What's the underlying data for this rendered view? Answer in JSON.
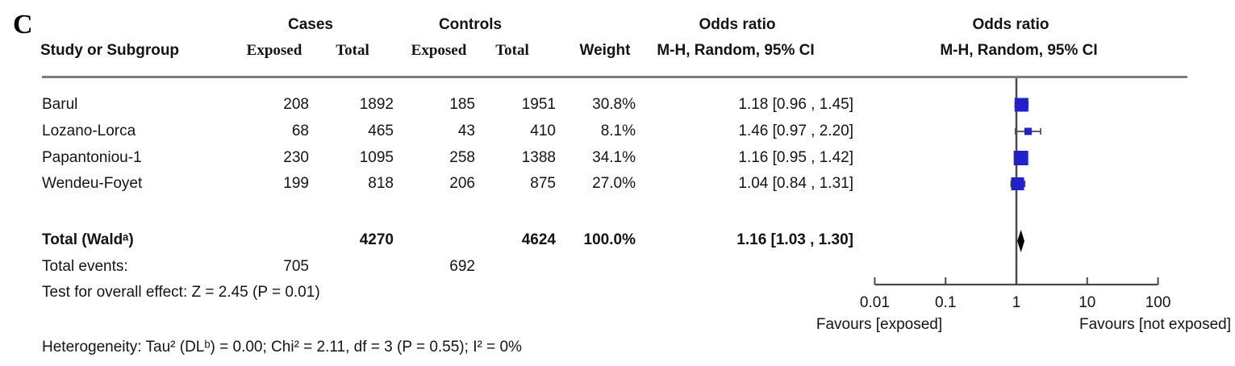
{
  "panel_label": "C",
  "header": {
    "group_cases": "Cases",
    "group_controls": "Controls",
    "group_or_left": "Odds ratio",
    "group_or_right": "Odds ratio",
    "study": "Study or Subgroup",
    "exposed_cases": "Exposed",
    "total_cases": "Total",
    "exposed_controls": "Exposed",
    "total_controls": "Total",
    "weight": "Weight",
    "mh_left": "M-H, Random, 95% CI",
    "mh_right": "M-H, Random, 95% CI"
  },
  "rows": [
    {
      "study": "Barul",
      "cases_exposed": "208",
      "cases_total": "1892",
      "controls_exposed": "185",
      "controls_total": "1951",
      "weight": "30.8%",
      "or_text": "1.18 [0.96 , 1.45]"
    },
    {
      "study": "Lozano-Lorca",
      "cases_exposed": "68",
      "cases_total": "465",
      "controls_exposed": "43",
      "controls_total": "410",
      "weight": "8.1%",
      "or_text": "1.46 [0.97 , 2.20]"
    },
    {
      "study": "Papantoniou-1",
      "cases_exposed": "230",
      "cases_total": "1095",
      "controls_exposed": "258",
      "controls_total": "1388",
      "weight": "34.1%",
      "or_text": "1.16 [0.95 , 1.42]"
    },
    {
      "study": "Wendeu-Foyet",
      "cases_exposed": "199",
      "cases_total": "818",
      "controls_exposed": "206",
      "controls_total": "875",
      "weight": "27.0%",
      "or_text": "1.04 [0.84 , 1.31]"
    }
  ],
  "total": {
    "label": "Total (Waldᵃ)",
    "cases_total": "4270",
    "controls_total": "4624",
    "weight": "100.0%",
    "or_text": "1.16 [1.03 , 1.30]"
  },
  "total_events": {
    "label": "Total events:",
    "cases": "705",
    "controls": "692"
  },
  "overall_effect": "Test for overall effect: Z = 2.45 (P = 0.01)",
  "heterogeneity": "Heterogeneity: Tau² (DLᵇ) = 0.00; Chi² = 2.11, df = 3 (P = 0.55); I² = 0%",
  "chart_data": {
    "type": "forest",
    "effect_measure": "Odds ratio, M-H, Random, 95% CI",
    "scale": "log10",
    "axis_ticks": [
      0.01,
      0.1,
      1,
      10,
      100
    ],
    "axis_tick_labels": [
      "0.01",
      "0.1",
      "1",
      "10",
      "100"
    ],
    "axis_range": [
      0.01,
      100
    ],
    "null_value": 1,
    "favours_left": "Favours [exposed]",
    "favours_right": "Favours [not exposed]",
    "studies": [
      {
        "name": "Barul",
        "or": 1.18,
        "ci_low": 0.96,
        "ci_high": 1.45,
        "weight_pct": 30.8
      },
      {
        "name": "Lozano-Lorca",
        "or": 1.46,
        "ci_low": 0.97,
        "ci_high": 2.2,
        "weight_pct": 8.1
      },
      {
        "name": "Papantoniou-1",
        "or": 1.16,
        "ci_low": 0.95,
        "ci_high": 1.42,
        "weight_pct": 34.1
      },
      {
        "name": "Wendeu-Foyet",
        "or": 1.04,
        "ci_low": 0.84,
        "ci_high": 1.31,
        "weight_pct": 27.0
      }
    ],
    "summary": {
      "name": "Total",
      "or": 1.16,
      "ci_low": 1.03,
      "ci_high": 1.3,
      "weight_pct": 100.0
    },
    "marker_color": "#2121cc",
    "diamond_color": "#000000",
    "line_color": "#4a4a4a"
  }
}
